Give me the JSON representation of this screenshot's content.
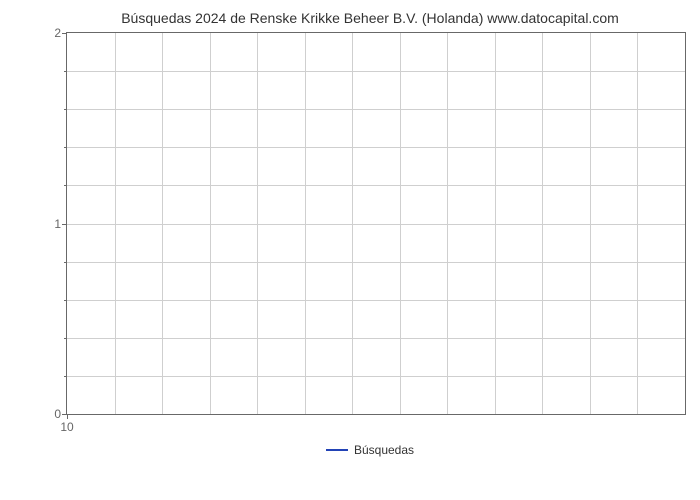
{
  "chart": {
    "type": "line",
    "title": "Búsquedas 2024 de Renske Krikke Beheer B.V. (Holanda) www.datocapital.com",
    "title_fontsize": 14,
    "title_color": "#333333",
    "background_color": "#ffffff",
    "plot_border_color": "#686868",
    "grid_color": "#cfcfcf",
    "axis_label_color": "#666666",
    "axis_label_fontsize": 12,
    "ylim": [
      0,
      2
    ],
    "ytick_major": [
      0,
      1,
      2
    ],
    "ytick_minor_count": 4,
    "y_grid_divisions": 10,
    "x_columns": 13,
    "xtick_labels": [
      "10"
    ],
    "xtick_label_x_fraction": 0.0,
    "series": [
      {
        "name": "Búsquedas",
        "color": "#2243b6",
        "line_width": 2,
        "data": []
      }
    ],
    "legend": {
      "position": "bottom-center",
      "items": [
        {
          "label": "Búsquedas",
          "color": "#2243b6"
        }
      ]
    }
  }
}
